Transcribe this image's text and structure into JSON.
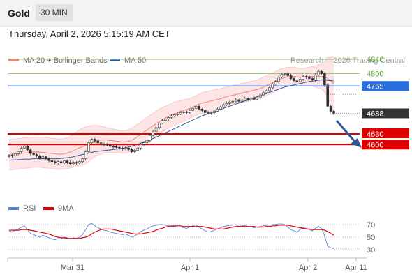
{
  "header": {
    "symbol": "Gold",
    "interval": "30 MIN",
    "datetime": "Thursday, April 2, 2026 5:15:19 AM CET",
    "source": "Research © 2026 Trading Central"
  },
  "colors": {
    "ma20": "#f08080",
    "ma50": "#2e5a9c",
    "bollinger": "#fde0e0",
    "resistance": "#8cc46a",
    "pivot": "#2a6fe0",
    "support": "#e00000",
    "price_tag": "#333333",
    "rsi": "#5a7fd6",
    "rsi_ma": "#e00000",
    "arrow": "#2e5a9c",
    "candle": "#333333"
  },
  "chart_data": [
    {
      "type": "candlestick",
      "title": "",
      "legend": [
        {
          "name": "MA 20 + Bollinger Bands",
          "color": "#f08080"
        },
        {
          "name": "MA 50",
          "color": "#2e5a9c"
        }
      ],
      "x_ticks": [
        "Mar 31",
        "Apr 1",
        "Apr 2",
        "Apr 11"
      ],
      "ylim": [
        4520,
        4850
      ],
      "levels": [
        {
          "value": 4840,
          "label": "4840",
          "kind": "resistance"
        },
        {
          "value": 4800,
          "label": "4800",
          "kind": "resistance"
        },
        {
          "value": 4765,
          "label": "4765",
          "kind": "pivot"
        },
        {
          "value": 4630,
          "label": "4630",
          "kind": "support"
        },
        {
          "value": 4600,
          "label": "4600",
          "kind": "support"
        }
      ],
      "last_price": {
        "value": 4688,
        "label": "4688"
      },
      "close": [
        4570,
        4568,
        4574,
        4580,
        4590,
        4596,
        4585,
        4575,
        4572,
        4568,
        4562,
        4566,
        4560,
        4555,
        4552,
        4548,
        4552,
        4548,
        4554,
        4550,
        4546,
        4550,
        4548,
        4552,
        4560,
        4580,
        4605,
        4615,
        4610,
        4605,
        4602,
        4600,
        4598,
        4595,
        4594,
        4592,
        4590,
        4588,
        4590,
        4586,
        4580,
        4584,
        4590,
        4600,
        4605,
        4612,
        4626,
        4636,
        4648,
        4660,
        4668,
        4672,
        4676,
        4680,
        4684,
        4686,
        4690,
        4692,
        4690,
        4696,
        4702,
        4708,
        4700,
        4696,
        4690,
        4688,
        4690,
        4694,
        4700,
        4706,
        4712,
        4716,
        4720,
        4722,
        4726,
        4722,
        4726,
        4730,
        4726,
        4730,
        4728,
        4734,
        4740,
        4746,
        4752,
        4760,
        4770,
        4778,
        4790,
        4798,
        4800,
        4794,
        4786,
        4780,
        4776,
        4784,
        4792,
        4790,
        4786,
        4782,
        4796,
        4806,
        4800,
        4768,
        4708,
        4694,
        4688
      ],
      "bollinger_upper": [
        4614,
        4615,
        4616,
        4617,
        4618,
        4619,
        4620,
        4621,
        4622,
        4622,
        4622,
        4621,
        4620,
        4619,
        4618,
        4617,
        4616,
        4616,
        4617,
        4620,
        4624,
        4630,
        4636,
        4642,
        4646,
        4650,
        4652,
        4654,
        4654,
        4654,
        4652,
        4650,
        4648,
        4646,
        4644,
        4642,
        4640,
        4638,
        4640,
        4642,
        4646,
        4652,
        4658,
        4664,
        4670,
        4676,
        4682,
        4688,
        4694,
        4700,
        4704,
        4708,
        4712,
        4716,
        4720,
        4722,
        4724,
        4726,
        4728,
        4730,
        4734,
        4738,
        4742,
        4746,
        4748,
        4750,
        4752,
        4754,
        4756,
        4758,
        4760,
        4762,
        4764,
        4766,
        4768,
        4770,
        4772,
        4774,
        4776,
        4778,
        4780,
        4782,
        4786,
        4790,
        4794,
        4798,
        4802,
        4806,
        4810,
        4814,
        4816,
        4818,
        4818,
        4818,
        4816,
        4814,
        4814,
        4816,
        4818,
        4820,
        4822,
        4824,
        4828,
        4834,
        4840,
        4846,
        4850
      ],
      "bollinger_lower": [
        4528,
        4529,
        4530,
        4531,
        4532,
        4533,
        4534,
        4535,
        4536,
        4536,
        4536,
        4535,
        4534,
        4533,
        4532,
        4531,
        4530,
        4530,
        4531,
        4532,
        4534,
        4536,
        4538,
        4540,
        4542,
        4546,
        4552,
        4560,
        4566,
        4570,
        4574,
        4576,
        4578,
        4578,
        4578,
        4578,
        4578,
        4576,
        4576,
        4576,
        4578,
        4582,
        4588,
        4594,
        4600,
        4606,
        4612,
        4618,
        4624,
        4630,
        4636,
        4642,
        4646,
        4650,
        4654,
        4658,
        4662,
        4666,
        4670,
        4674,
        4678,
        4682,
        4686,
        4688,
        4690,
        4692,
        4694,
        4696,
        4698,
        4700,
        4704,
        4708,
        4710,
        4712,
        4714,
        4716,
        4718,
        4720,
        4722,
        4724,
        4726,
        4728,
        4730,
        4734,
        4738,
        4742,
        4746,
        4750,
        4754,
        4758,
        4762,
        4764,
        4766,
        4766,
        4766,
        4766,
        4766,
        4766,
        4766,
        4764,
        4762,
        4760,
        4756,
        4748,
        4732,
        4712,
        4692
      ],
      "ma20": [
        4571,
        4572,
        4573,
        4574,
        4575,
        4576,
        4577,
        4578,
        4579,
        4579,
        4579,
        4578,
        4577,
        4576,
        4575,
        4574,
        4573,
        4573,
        4574,
        4576,
        4579,
        4583,
        4587,
        4591,
        4594,
        4598,
        4602,
        4607,
        4610,
        4612,
        4613,
        4613,
        4613,
        4612,
        4611,
        4610,
        4609,
        4607,
        4608,
        4609,
        4612,
        4617,
        4623,
        4629,
        4635,
        4641,
        4647,
        4653,
        4659,
        4665,
        4670,
        4675,
        4679,
        4683,
        4687,
        4690,
        4693,
        4696,
        4699,
        4702,
        4706,
        4710,
        4714,
        4717,
        4719,
        4721,
        4723,
        4725,
        4727,
        4729,
        4732,
        4735,
        4737,
        4739,
        4741,
        4743,
        4745,
        4747,
        4749,
        4751,
        4753,
        4755,
        4758,
        4762,
        4766,
        4770,
        4774,
        4778,
        4782,
        4786,
        4789,
        4791,
        4792,
        4792,
        4791,
        4790,
        4790,
        4791,
        4792,
        4792,
        4792,
        4792,
        4792,
        4791,
        4786,
        4779,
        4771
      ],
      "ma50": [
        4556,
        4557,
        4557,
        4558,
        4558,
        4559,
        4559,
        4559,
        4560,
        4560,
        4560,
        4560,
        4560,
        4560,
        4560,
        4560,
        4560,
        4561,
        4562,
        4563,
        4564,
        4566,
        4568,
        4570,
        4572,
        4574,
        4576,
        4578,
        4580,
        4581,
        4582,
        4583,
        4584,
        4585,
        4586,
        4587,
        4588,
        4589,
        4591,
        4593,
        4595,
        4598,
        4601,
        4604,
        4607,
        4610,
        4613,
        4617,
        4621,
        4625,
        4629,
        4633,
        4637,
        4641,
        4645,
        4649,
        4653,
        4657,
        4661,
        4665,
        4669,
        4673,
        4677,
        4681,
        4684,
        4687,
        4690,
        4693,
        4696,
        4699,
        4702,
        4705,
        4708,
        4711,
        4714,
        4717,
        4720,
        4723,
        4726,
        4729,
        4732,
        4735,
        4738,
        4741,
        4744,
        4747,
        4750,
        4753,
        4756,
        4759,
        4762,
        4764,
        4766,
        4768,
        4770,
        4772,
        4774,
        4776,
        4778,
        4779,
        4780,
        4781,
        4782,
        4782,
        4781,
        4780,
        4779
      ]
    },
    {
      "type": "line",
      "title": "",
      "legend": [
        {
          "name": "RSI",
          "color": "#5a7fd6"
        },
        {
          "name": "9MA",
          "color": "#e00000"
        }
      ],
      "y_ticks": [
        70,
        50,
        30
      ],
      "ylim": [
        25,
        80
      ],
      "series": [
        {
          "name": "RSI",
          "values": [
            60,
            58,
            61,
            63,
            66,
            68,
            62,
            56,
            54,
            52,
            50,
            53,
            51,
            49,
            47,
            46,
            48,
            47,
            50,
            49,
            47,
            49,
            48,
            50,
            54,
            62,
            70,
            72,
            68,
            65,
            63,
            61,
            60,
            58,
            57,
            56,
            55,
            54,
            55,
            53,
            50,
            52,
            55,
            59,
            61,
            63,
            66,
            68,
            69,
            70,
            70,
            69,
            68,
            67,
            67,
            66,
            66,
            65,
            64,
            66,
            68,
            70,
            66,
            63,
            60,
            58,
            59,
            61,
            63,
            65,
            67,
            68,
            69,
            69,
            70,
            67,
            68,
            69,
            66,
            67,
            65,
            66,
            67,
            68,
            69,
            69,
            70,
            70,
            71,
            71,
            70,
            66,
            62,
            60,
            58,
            62,
            65,
            64,
            62,
            60,
            64,
            67,
            64,
            52,
            36,
            33,
            32
          ]
        },
        {
          "name": "9MA",
          "values": [
            61,
            61,
            61,
            61,
            62,
            62,
            62,
            61,
            60,
            59,
            58,
            57,
            56,
            55,
            53,
            51,
            50,
            49,
            49,
            48,
            48,
            48,
            48,
            48,
            49,
            50,
            52,
            55,
            58,
            60,
            62,
            63,
            63,
            63,
            62,
            61,
            60,
            59,
            58,
            57,
            56,
            55,
            55,
            55,
            56,
            57,
            58,
            59,
            61,
            63,
            64,
            66,
            67,
            68,
            68,
            68,
            68,
            67,
            67,
            67,
            67,
            67,
            67,
            67,
            66,
            65,
            64,
            63,
            63,
            63,
            63,
            64,
            65,
            66,
            67,
            67,
            67,
            67,
            67,
            67,
            67,
            66,
            66,
            66,
            67,
            67,
            68,
            68,
            69,
            69,
            69,
            69,
            68,
            67,
            66,
            65,
            64,
            63,
            63,
            62,
            62,
            62,
            62,
            61,
            59,
            56,
            53
          ]
        }
      ]
    }
  ]
}
